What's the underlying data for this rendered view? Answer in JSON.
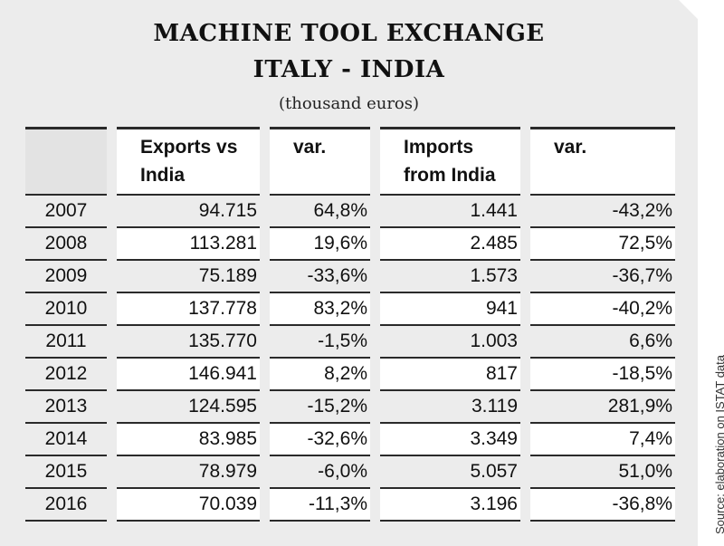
{
  "title_line1": "MACHINE TOOL EXCHANGE",
  "title_line2": "ITALY - INDIA",
  "subtitle": "(thousand euros)",
  "source": "Source: elaboration on ISTAT data",
  "headers": [
    "",
    "Exports vs India",
    "var.",
    "Imports from India",
    "var."
  ],
  "rows": [
    [
      "2007",
      "94.715",
      "64,8%",
      "1.441",
      "-43,2%"
    ],
    [
      "2008",
      "113.281",
      "19,6%",
      "2.485",
      "72,5%"
    ],
    [
      "2009",
      "75.189",
      "-33,6%",
      "1.573",
      "-36,7%"
    ],
    [
      "2010",
      "137.778",
      "83,2%",
      "941",
      "-40,2%"
    ],
    [
      "2011",
      "135.770",
      "-1,5%",
      "1.003",
      "6,6%"
    ],
    [
      "2012",
      "146.941",
      "8,2%",
      "817",
      "-18,5%"
    ],
    [
      "2013",
      "124.595",
      "-15,2%",
      "3.119",
      "281,9%"
    ],
    [
      "2014",
      "83.985",
      "-32,6%",
      "3.349",
      "7,4%"
    ],
    [
      "2015",
      "78.979",
      "-6,0%",
      "5.057",
      "51,0%"
    ],
    [
      "2016",
      "70.039",
      "-11,3%",
      "3.196",
      "-36,8%"
    ]
  ],
  "chart_data": {
    "type": "table",
    "title": "MACHINE TOOL EXCHANGE ITALY - INDIA",
    "subtitle": "(thousand euros)",
    "columns": [
      "",
      "Exports vs India",
      "var.",
      "Imports from India",
      "var."
    ],
    "categories": [
      "2007",
      "2008",
      "2009",
      "2010",
      "2011",
      "2012",
      "2013",
      "2014",
      "2015",
      "2016"
    ],
    "series": [
      {
        "name": "Exports vs India",
        "values": [
          94715,
          113281,
          75189,
          137778,
          135770,
          146941,
          124595,
          83985,
          78979,
          70039
        ]
      },
      {
        "name": "var.",
        "values": [
          64.8,
          19.6,
          -33.6,
          83.2,
          -1.5,
          8.2,
          -15.2,
          -32.6,
          -6.0,
          -11.3
        ]
      },
      {
        "name": "Imports from India",
        "values": [
          1441,
          2485,
          1573,
          941,
          1003,
          817,
          3119,
          3349,
          5057,
          3196
        ]
      },
      {
        "name": "var.",
        "values": [
          -43.2,
          72.5,
          -36.7,
          -40.2,
          6.6,
          -18.5,
          281.9,
          7.4,
          51.0,
          -36.8
        ]
      }
    ]
  }
}
